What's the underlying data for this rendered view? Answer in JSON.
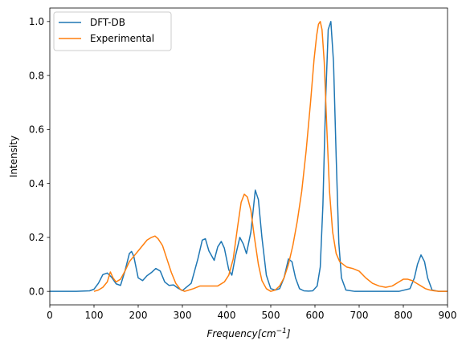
{
  "chart_data": {
    "type": "line",
    "title": "",
    "xlabel_main": "Frequency",
    "xlabel_unit_base": "[cm",
    "xlabel_unit_exp": "−1",
    "xlabel_unit_close": "]",
    "ylabel": "Intensity",
    "xlim": [
      0,
      900
    ],
    "ylim": [
      -0.05,
      1.05
    ],
    "xticks": [
      0,
      100,
      200,
      300,
      400,
      500,
      600,
      700,
      800,
      900
    ],
    "yticks": [
      0.0,
      0.2,
      0.4,
      0.6,
      0.8,
      1.0
    ],
    "grid": false,
    "legend_position": "upper-left",
    "series": [
      {
        "name": "DFT-DB",
        "color": "#1f77b4",
        "x": [
          0,
          60,
          90,
          100,
          110,
          120,
          130,
          140,
          150,
          160,
          170,
          180,
          185,
          190,
          200,
          210,
          220,
          230,
          240,
          250,
          260,
          270,
          280,
          290,
          300,
          320,
          335,
          345,
          352,
          360,
          372,
          380,
          388,
          395,
          405,
          412,
          420,
          430,
          438,
          445,
          455,
          465,
          472,
          480,
          490,
          500,
          510,
          520,
          530,
          540,
          548,
          556,
          565,
          575,
          585,
          595,
          605,
          612,
          618,
          624,
          630,
          636,
          642,
          648,
          654,
          660,
          670,
          690,
          740,
          790,
          815,
          825,
          832,
          840,
          848,
          855,
          865,
          880,
          900
        ],
        "y": [
          0,
          0,
          0.002,
          0.008,
          0.03,
          0.062,
          0.068,
          0.052,
          0.028,
          0.022,
          0.075,
          0.14,
          0.148,
          0.13,
          0.05,
          0.04,
          0.058,
          0.07,
          0.085,
          0.075,
          0.035,
          0.022,
          0.024,
          0.012,
          0.003,
          0.03,
          0.12,
          0.19,
          0.195,
          0.15,
          0.115,
          0.165,
          0.185,
          0.16,
          0.08,
          0.06,
          0.13,
          0.2,
          0.175,
          0.14,
          0.22,
          0.375,
          0.34,
          0.2,
          0.06,
          0.01,
          0.005,
          0.01,
          0.05,
          0.12,
          0.11,
          0.05,
          0.01,
          0.002,
          0.001,
          0.002,
          0.02,
          0.09,
          0.32,
          0.7,
          0.97,
          1.0,
          0.85,
          0.5,
          0.18,
          0.05,
          0.005,
          0,
          0,
          0,
          0.01,
          0.05,
          0.1,
          0.135,
          0.11,
          0.05,
          0.005,
          0,
          0
        ]
      },
      {
        "name": "Experimental",
        "color": "#ff7f0e",
        "x": [
          100,
          110,
          120,
          130,
          137,
          143,
          150,
          160,
          170,
          180,
          190,
          200,
          210,
          220,
          230,
          238,
          245,
          255,
          265,
          275,
          285,
          295,
          305,
          315,
          325,
          340,
          360,
          380,
          395,
          405,
          415,
          425,
          433,
          440,
          447,
          455,
          463,
          472,
          480,
          490,
          500,
          510,
          520,
          530,
          540,
          550,
          560,
          570,
          580,
          590,
          598,
          604,
          608,
          612,
          616,
          621,
          627,
          633,
          640,
          648,
          656,
          664,
          672,
          685,
          700,
          715,
          730,
          745,
          760,
          775,
          790,
          800,
          810,
          820,
          830,
          840,
          850,
          860,
          870,
          880,
          890,
          900
        ],
        "y": [
          0.0,
          0.005,
          0.015,
          0.035,
          0.072,
          0.05,
          0.035,
          0.045,
          0.075,
          0.11,
          0.13,
          0.15,
          0.17,
          0.19,
          0.2,
          0.205,
          0.195,
          0.17,
          0.12,
          0.07,
          0.03,
          0.008,
          0.0,
          0.005,
          0.01,
          0.02,
          0.02,
          0.02,
          0.035,
          0.06,
          0.12,
          0.24,
          0.33,
          0.36,
          0.35,
          0.3,
          0.2,
          0.1,
          0.04,
          0.01,
          0.0,
          0.005,
          0.02,
          0.05,
          0.1,
          0.17,
          0.26,
          0.37,
          0.52,
          0.7,
          0.86,
          0.95,
          0.99,
          1.0,
          0.97,
          0.85,
          0.6,
          0.37,
          0.22,
          0.14,
          0.11,
          0.1,
          0.09,
          0.085,
          0.075,
          0.05,
          0.03,
          0.02,
          0.015,
          0.02,
          0.035,
          0.045,
          0.045,
          0.04,
          0.03,
          0.02,
          0.01,
          0.005,
          0.002,
          0.0,
          0.0,
          0.0
        ]
      }
    ]
  }
}
